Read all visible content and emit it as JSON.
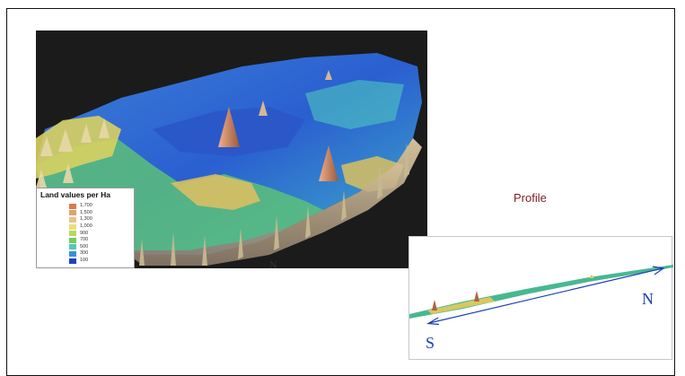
{
  "legend": {
    "title": "Land values per Ha",
    "items": [
      {
        "label": "1,700",
        "color": "#d97b4a"
      },
      {
        "label": "1,500",
        "color": "#e0a070"
      },
      {
        "label": "1,300",
        "color": "#e8c48a"
      },
      {
        "label": "1,000",
        "color": "#e8e07a"
      },
      {
        "label": "900",
        "color": "#b8d85a"
      },
      {
        "label": "700",
        "color": "#6fcf5a"
      },
      {
        "label": "500",
        "color": "#4fc9b8"
      },
      {
        "label": "300",
        "color": "#3a8fd8"
      },
      {
        "label": "100",
        "color": "#1f3fc8"
      }
    ]
  },
  "profile": {
    "title": "Profile",
    "north_label": "N",
    "south_label": "S"
  },
  "map_axis_label": "N",
  "colors": {
    "arrow": "#1a3fb5",
    "title": "#7a1f1f",
    "frame": "#111111"
  }
}
